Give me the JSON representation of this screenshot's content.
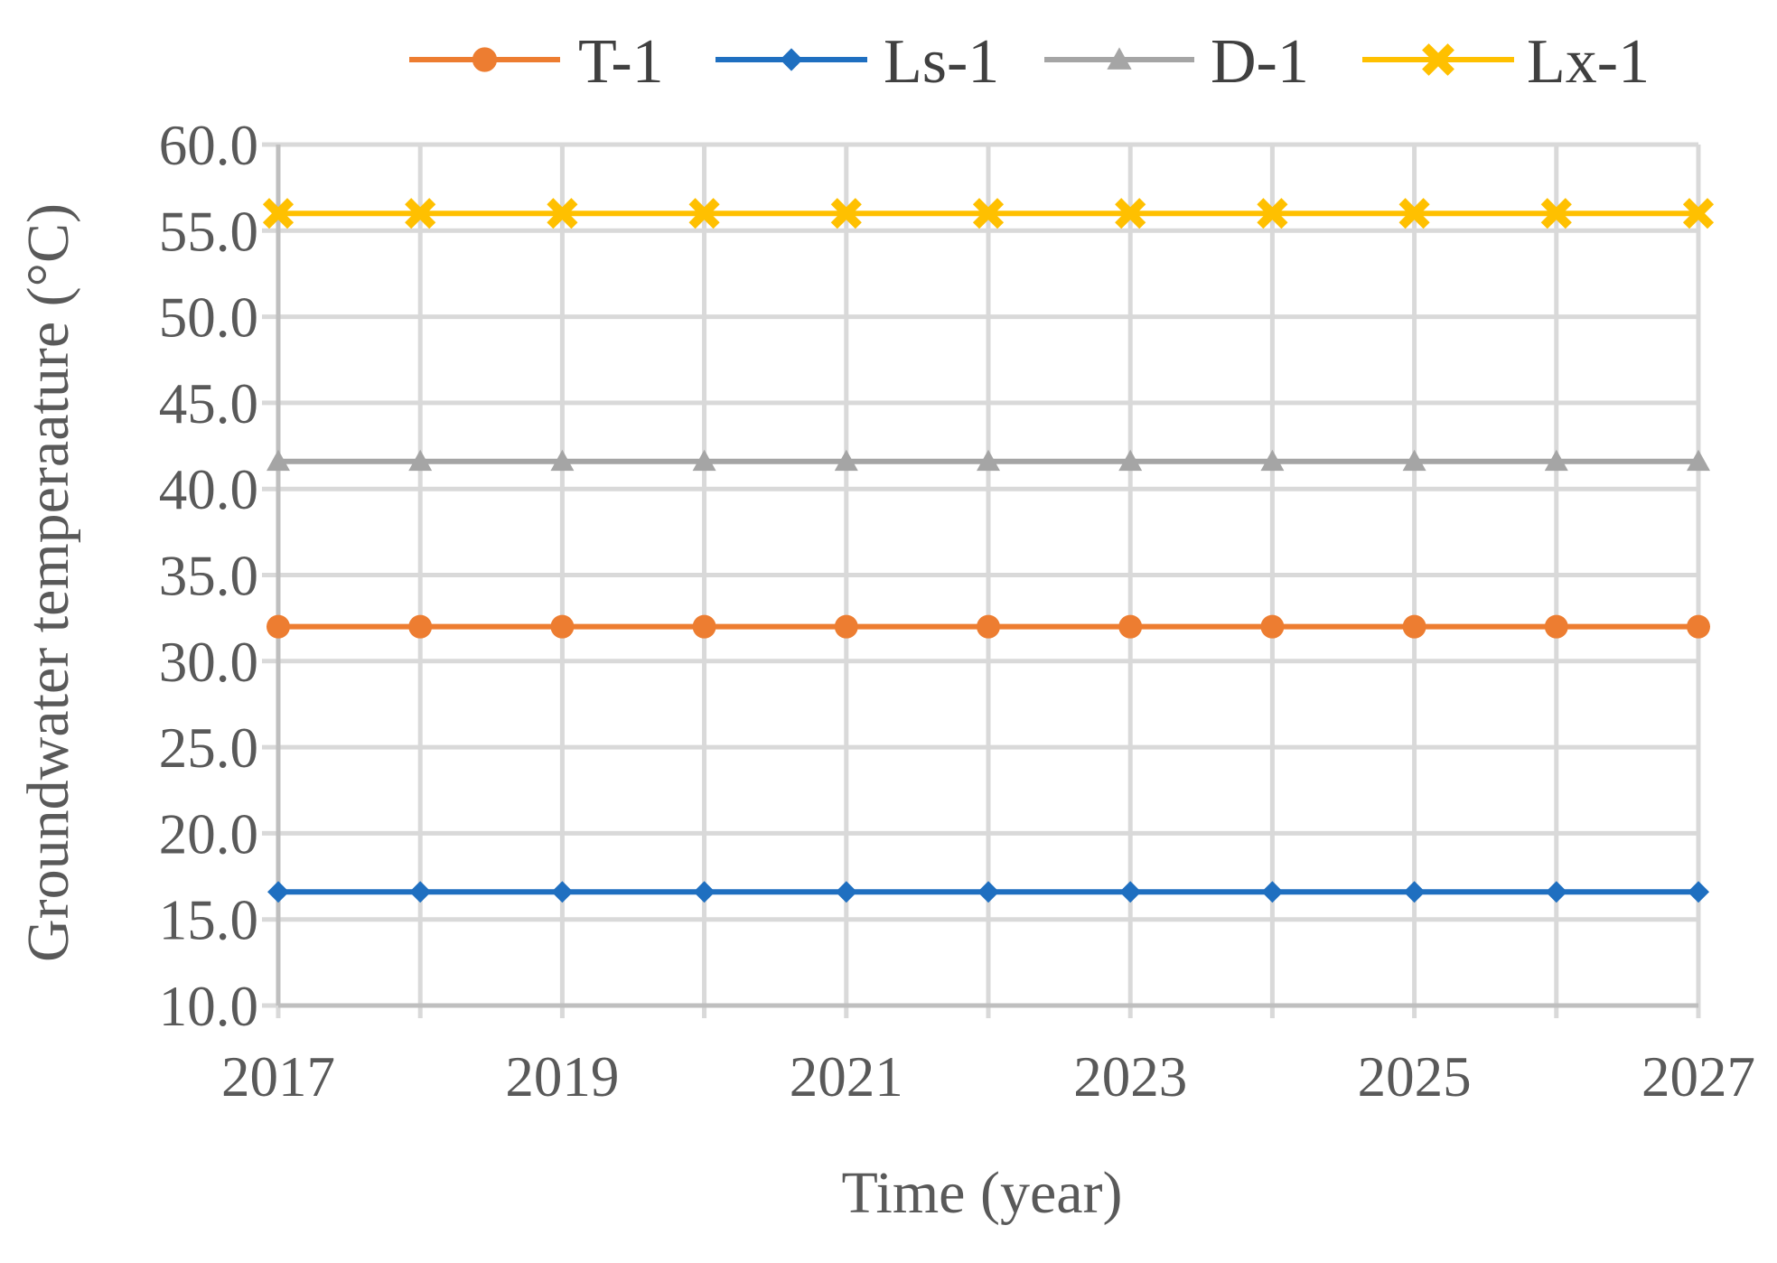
{
  "chart_data": {
    "type": "line",
    "title": "",
    "xlabel": "Time (year)",
    "ylabel": "Groundwater temperaature (°C)",
    "x": [
      2017,
      2018,
      2019,
      2020,
      2021,
      2022,
      2023,
      2024,
      2025,
      2026,
      2027
    ],
    "x_tick_labels": [
      "2017",
      "2019",
      "2021",
      "2023",
      "2025",
      "2027"
    ],
    "xlim": [
      2017,
      2027
    ],
    "ylim": [
      10.0,
      60.0
    ],
    "y_tick_labels": [
      "10.0",
      "15.0",
      "20.0",
      "25.0",
      "30.0",
      "35.0",
      "40.0",
      "45.0",
      "50.0",
      "55.0",
      "60.0"
    ],
    "grid": true,
    "legend_position": "top",
    "series": [
      {
        "name": "T-1",
        "color": "#ED7D31",
        "marker": "circle",
        "values": [
          32.0,
          32.0,
          32.0,
          32.0,
          32.0,
          32.0,
          32.0,
          32.0,
          32.0,
          32.0,
          32.0
        ]
      },
      {
        "name": "Ls-1",
        "color": "#1F6FC0",
        "marker": "diamond",
        "values": [
          16.6,
          16.6,
          16.6,
          16.6,
          16.6,
          16.6,
          16.6,
          16.6,
          16.6,
          16.6,
          16.6
        ]
      },
      {
        "name": "D-1",
        "color": "#A5A5A5",
        "marker": "triangle",
        "values": [
          41.6,
          41.6,
          41.6,
          41.6,
          41.6,
          41.6,
          41.6,
          41.6,
          41.6,
          41.6,
          41.6
        ]
      },
      {
        "name": "Lx-1",
        "color": "#FFC000",
        "marker": "x",
        "values": [
          56.0,
          56.0,
          56.0,
          56.0,
          56.0,
          56.0,
          56.0,
          56.0,
          56.0,
          56.0,
          56.0
        ]
      }
    ]
  }
}
